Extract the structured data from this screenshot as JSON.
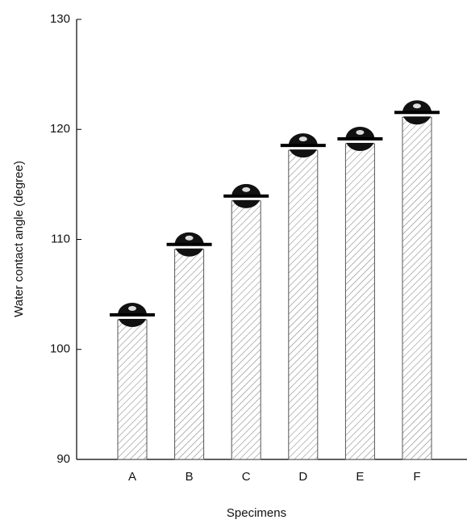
{
  "chart_data": {
    "type": "bar",
    "x_label": "Specimens",
    "y_label": "Water contact angle (degree)",
    "categories": [
      "A",
      "B",
      "C",
      "D",
      "E",
      "F"
    ],
    "values": [
      102.7,
      109.1,
      113.5,
      118.1,
      118.7,
      121.1
    ],
    "color": "#555555",
    "ylim": [
      90,
      130
    ],
    "yticks": [
      90,
      100,
      110,
      120,
      130
    ]
  }
}
